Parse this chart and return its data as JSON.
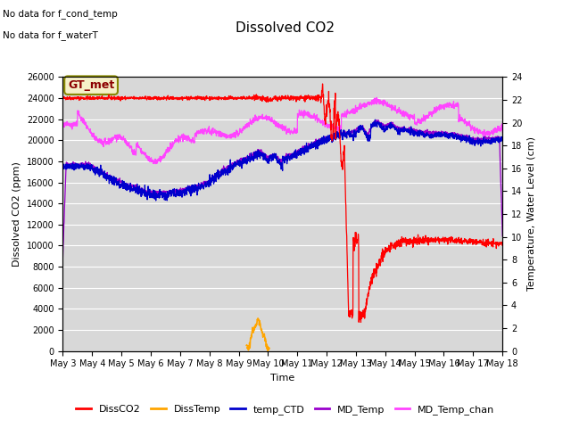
{
  "title": "Dissolved CO2",
  "xlabel": "Time",
  "ylabel_left": "Dissolved CO2 (ppm)",
  "ylabel_right": "Temperature, Water Level (cm)",
  "annotations": [
    "No data for f_cond_temp",
    "No data for f_waterT"
  ],
  "legend_box_label": "GT_met",
  "legend_entries": [
    {
      "label": "DissCO2",
      "color": "#ff0000"
    },
    {
      "label": "DissTemp",
      "color": "#ffa500"
    },
    {
      "label": "temp_CTD",
      "color": "#0000cc"
    },
    {
      "label": "MD_Temp",
      "color": "#9900cc"
    },
    {
      "label": "MD_Temp_chan",
      "color": "#ff44ff"
    }
  ],
  "ylim_left": [
    0,
    26000
  ],
  "ylim_right": [
    0,
    24
  ],
  "plot_bg_color": "#d8d8d8",
  "days": [
    "May 3",
    "May 4",
    "May 5",
    "May 6",
    "May 7",
    "May 8",
    "May 9",
    "May 10",
    "May 11",
    "May 12",
    "May 13",
    "May 14",
    "May 15",
    "May 16",
    "May 17",
    "May 18"
  ],
  "total_days": 15.0,
  "n_pts": 2000
}
